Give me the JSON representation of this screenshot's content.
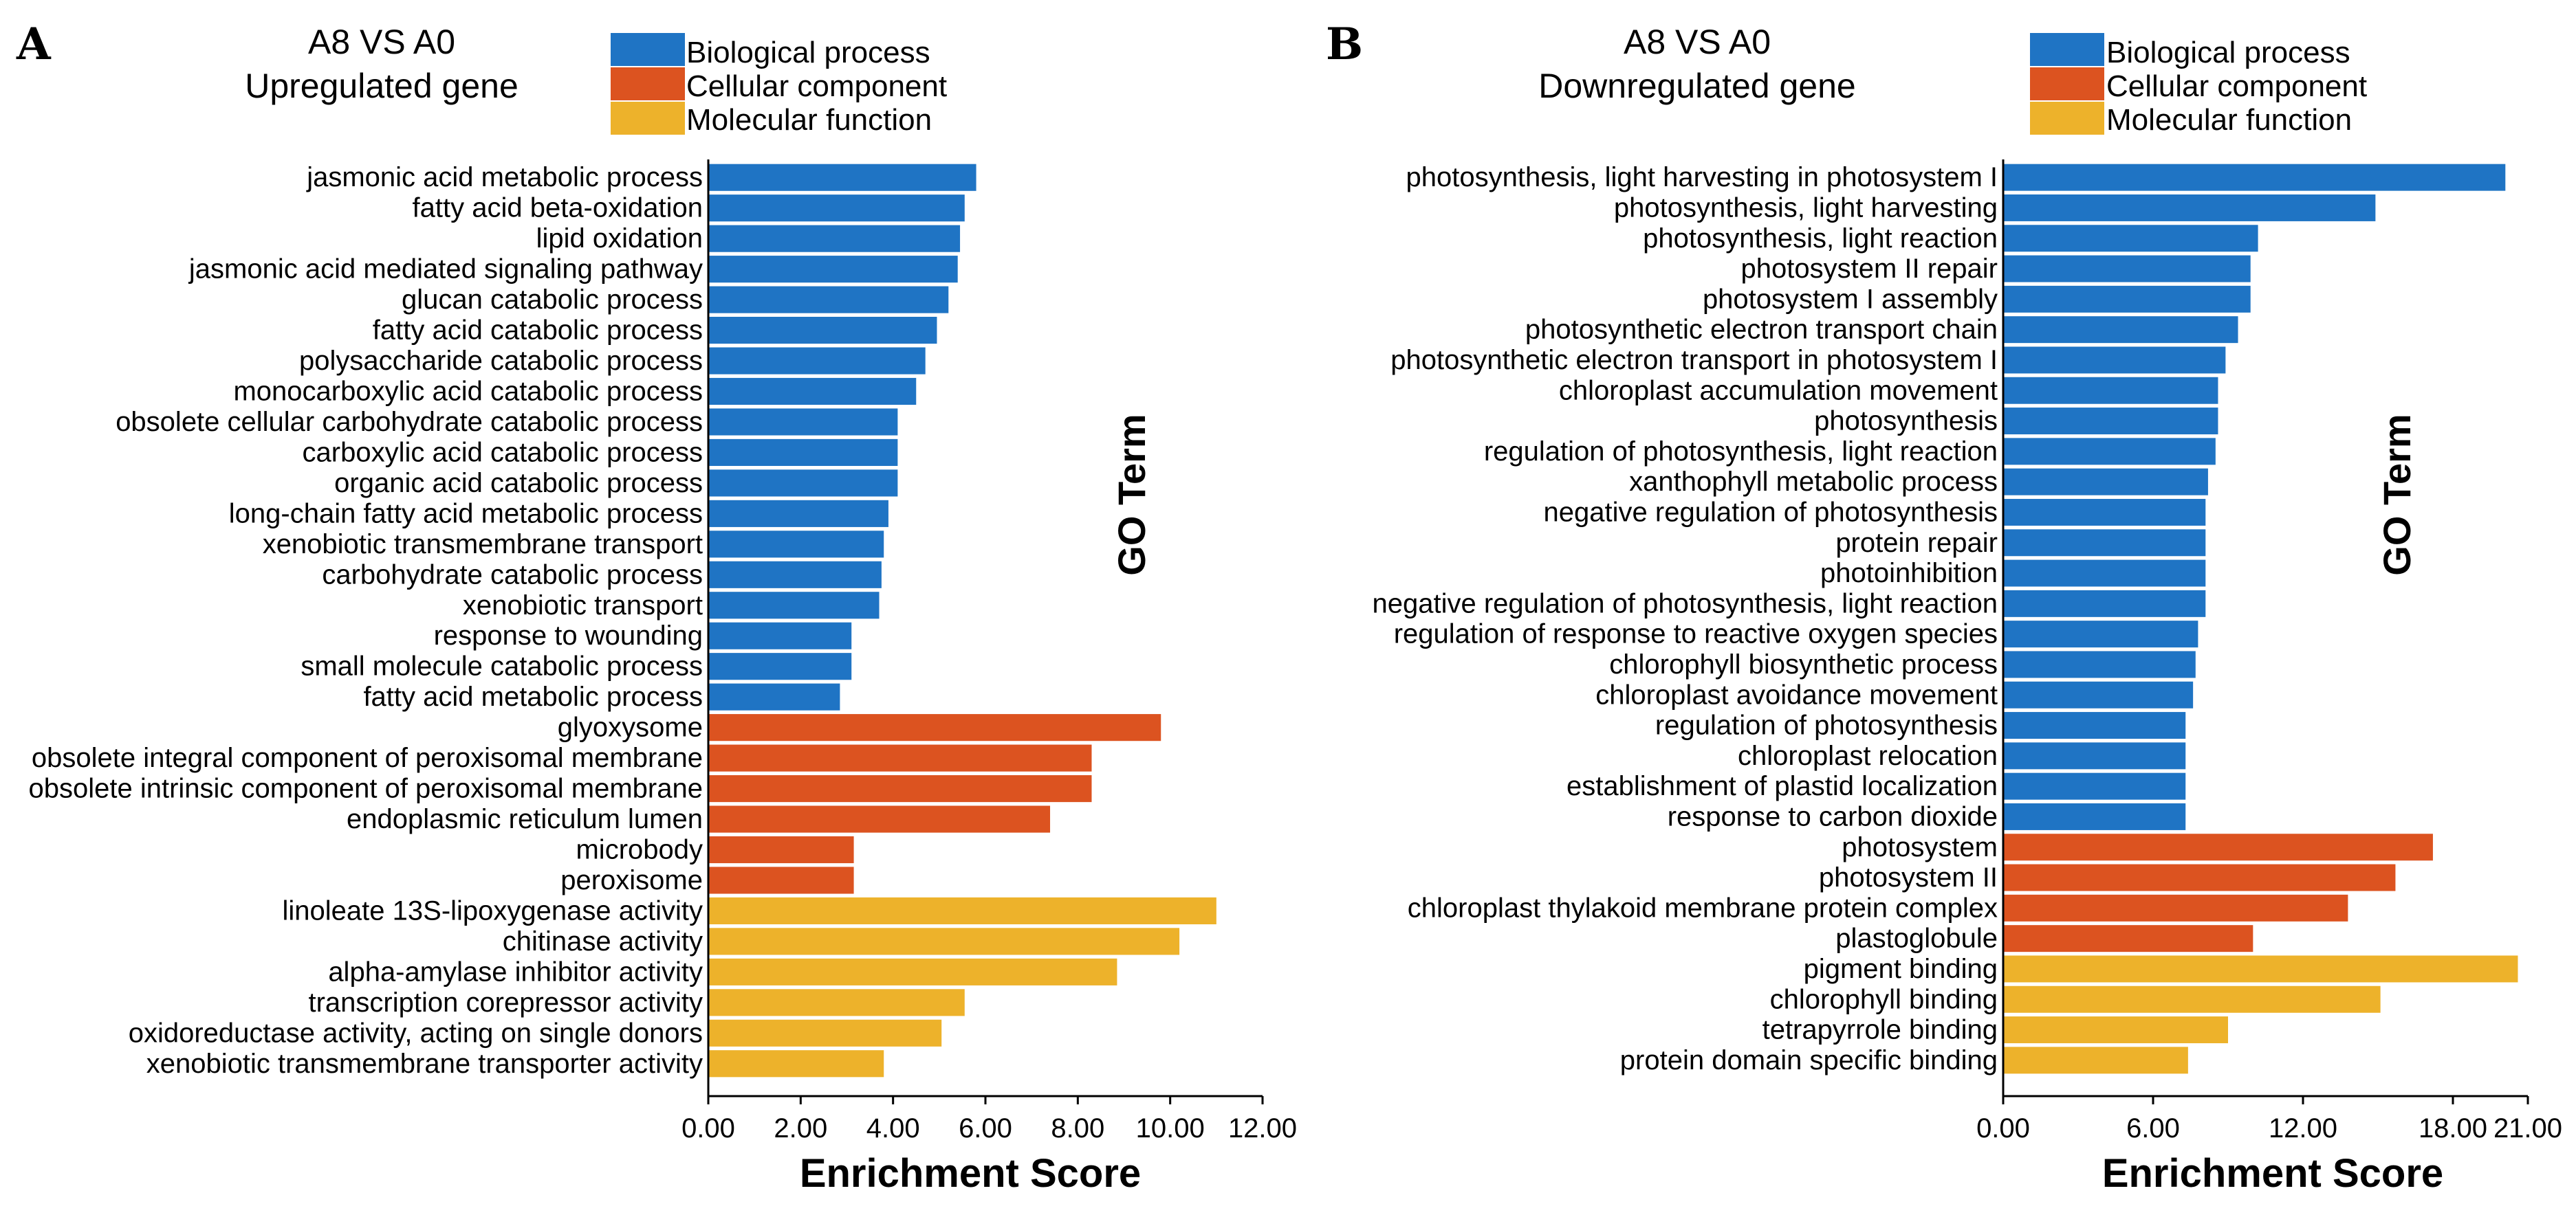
{
  "colors": {
    "biological": "#1f74c4",
    "cellular": "#dc5320",
    "molecular": "#edb22b"
  },
  "legend": [
    {
      "key": "biological",
      "label": "Biological process"
    },
    {
      "key": "cellular",
      "label": "Cellular component"
    },
    {
      "key": "molecular",
      "label": "Molecular function"
    }
  ],
  "chart_data": [
    {
      "panel": "A",
      "type": "bar",
      "orientation": "horizontal",
      "title_line1": "A8 VS A0",
      "title_line2": "Upregulated gene",
      "xlabel": "Enrichment Score",
      "ylabel": "GO Term",
      "xlim": [
        0,
        12
      ],
      "xticks": [
        0,
        2,
        4,
        6,
        8,
        10,
        12
      ],
      "xtick_labels": [
        "0.00",
        "2.00",
        "4.00",
        "6.00",
        "8.00",
        "10.00",
        "12.00"
      ],
      "bars": [
        {
          "term": "jasmonic acid metabolic process",
          "value": 5.8,
          "group": "biological"
        },
        {
          "term": "fatty acid beta-oxidation",
          "value": 5.55,
          "group": "biological"
        },
        {
          "term": "lipid oxidation",
          "value": 5.45,
          "group": "biological"
        },
        {
          "term": "jasmonic acid mediated signaling pathway",
          "value": 5.4,
          "group": "biological"
        },
        {
          "term": "glucan catabolic process",
          "value": 5.2,
          "group": "biological"
        },
        {
          "term": "fatty acid catabolic process",
          "value": 4.95,
          "group": "biological"
        },
        {
          "term": "polysaccharide catabolic process",
          "value": 4.7,
          "group": "biological"
        },
        {
          "term": "monocarboxylic acid catabolic process",
          "value": 4.5,
          "group": "biological"
        },
        {
          "term": "obsolete cellular carbohydrate catabolic process",
          "value": 4.1,
          "group": "biological"
        },
        {
          "term": "carboxylic acid catabolic process",
          "value": 4.1,
          "group": "biological"
        },
        {
          "term": "organic acid catabolic process",
          "value": 4.1,
          "group": "biological"
        },
        {
          "term": "long-chain fatty acid metabolic process",
          "value": 3.9,
          "group": "biological"
        },
        {
          "term": "xenobiotic transmembrane transport",
          "value": 3.8,
          "group": "biological"
        },
        {
          "term": "carbohydrate catabolic process",
          "value": 3.75,
          "group": "biological"
        },
        {
          "term": "xenobiotic transport",
          "value": 3.7,
          "group": "biological"
        },
        {
          "term": "response to wounding",
          "value": 3.1,
          "group": "biological"
        },
        {
          "term": "small molecule catabolic process",
          "value": 3.1,
          "group": "biological"
        },
        {
          "term": "fatty acid metabolic process",
          "value": 2.85,
          "group": "biological"
        },
        {
          "term": "glyoxysome",
          "value": 9.8,
          "group": "cellular"
        },
        {
          "term": "obsolete integral component of peroxisomal membrane",
          "value": 8.3,
          "group": "cellular"
        },
        {
          "term": "obsolete intrinsic component of peroxisomal membrane",
          "value": 8.3,
          "group": "cellular"
        },
        {
          "term": "endoplasmic reticulum lumen",
          "value": 7.4,
          "group": "cellular"
        },
        {
          "term": "microbody",
          "value": 3.15,
          "group": "cellular"
        },
        {
          "term": "peroxisome",
          "value": 3.15,
          "group": "cellular"
        },
        {
          "term": "linoleate 13S-lipoxygenase activity",
          "value": 11.0,
          "group": "molecular"
        },
        {
          "term": "chitinase activity",
          "value": 10.2,
          "group": "molecular"
        },
        {
          "term": "alpha-amylase inhibitor activity",
          "value": 8.85,
          "group": "molecular"
        },
        {
          "term": "transcription corepressor activity",
          "value": 5.55,
          "group": "molecular"
        },
        {
          "term": "oxidoreductase activity, acting on single donors",
          "value": 5.05,
          "group": "molecular"
        },
        {
          "term": "xenobiotic transmembrane transporter activity",
          "value": 3.8,
          "group": "molecular"
        }
      ]
    },
    {
      "panel": "B",
      "type": "bar",
      "orientation": "horizontal",
      "title_line1": "A8 VS A0",
      "title_line2": "Downregulated gene",
      "xlabel": "Enrichment Score",
      "ylabel": "GO Term",
      "xlim": [
        0,
        21
      ],
      "xticks": [
        0,
        6,
        12,
        18,
        21
      ],
      "xtick_labels": [
        "0.00",
        "6.00",
        "12.00",
        "18.00",
        "21.00"
      ],
      "bars": [
        {
          "term": "photosynthesis, light harvesting in photosystem I",
          "value": 20.1,
          "group": "biological"
        },
        {
          "term": "photosynthesis, light harvesting",
          "value": 14.9,
          "group": "biological"
        },
        {
          "term": "photosynthesis, light reaction",
          "value": 10.2,
          "group": "biological"
        },
        {
          "term": "photosystem II repair",
          "value": 9.9,
          "group": "biological"
        },
        {
          "term": "photosystem I assembly",
          "value": 9.9,
          "group": "biological"
        },
        {
          "term": "photosynthetic electron transport chain",
          "value": 9.4,
          "group": "biological"
        },
        {
          "term": "photosynthetic electron transport in photosystem I",
          "value": 8.9,
          "group": "biological"
        },
        {
          "term": "chloroplast accumulation movement",
          "value": 8.6,
          "group": "biological"
        },
        {
          "term": "photosynthesis",
          "value": 8.6,
          "group": "biological"
        },
        {
          "term": "regulation of photosynthesis, light reaction",
          "value": 8.5,
          "group": "biological"
        },
        {
          "term": "xanthophyll metabolic process",
          "value": 8.2,
          "group": "biological"
        },
        {
          "term": "negative regulation of photosynthesis",
          "value": 8.1,
          "group": "biological"
        },
        {
          "term": "protein repair",
          "value": 8.1,
          "group": "biological"
        },
        {
          "term": "photoinhibition",
          "value": 8.1,
          "group": "biological"
        },
        {
          "term": "negative regulation of photosynthesis, light reaction",
          "value": 8.1,
          "group": "biological"
        },
        {
          "term": "regulation of response to reactive oxygen species",
          "value": 7.8,
          "group": "biological"
        },
        {
          "term": "chlorophyll biosynthetic process",
          "value": 7.7,
          "group": "biological"
        },
        {
          "term": "chloroplast avoidance movement",
          "value": 7.6,
          "group": "biological"
        },
        {
          "term": "regulation of photosynthesis",
          "value": 7.3,
          "group": "biological"
        },
        {
          "term": "chloroplast relocation",
          "value": 7.3,
          "group": "biological"
        },
        {
          "term": "establishment of plastid localization",
          "value": 7.3,
          "group": "biological"
        },
        {
          "term": "response to carbon dioxide",
          "value": 7.3,
          "group": "biological"
        },
        {
          "term": "photosystem",
          "value": 17.2,
          "group": "cellular"
        },
        {
          "term": "photosystem II",
          "value": 15.7,
          "group": "cellular"
        },
        {
          "term": "chloroplast thylakoid membrane protein complex",
          "value": 13.8,
          "group": "cellular"
        },
        {
          "term": "plastoglobule",
          "value": 10.0,
          "group": "cellular"
        },
        {
          "term": "pigment binding",
          "value": 20.6,
          "group": "molecular"
        },
        {
          "term": "chlorophyll binding",
          "value": 15.1,
          "group": "molecular"
        },
        {
          "term": "tetrapyrrole binding",
          "value": 9.0,
          "group": "molecular"
        },
        {
          "term": "protein domain specific binding",
          "value": 7.4,
          "group": "molecular"
        }
      ]
    }
  ]
}
